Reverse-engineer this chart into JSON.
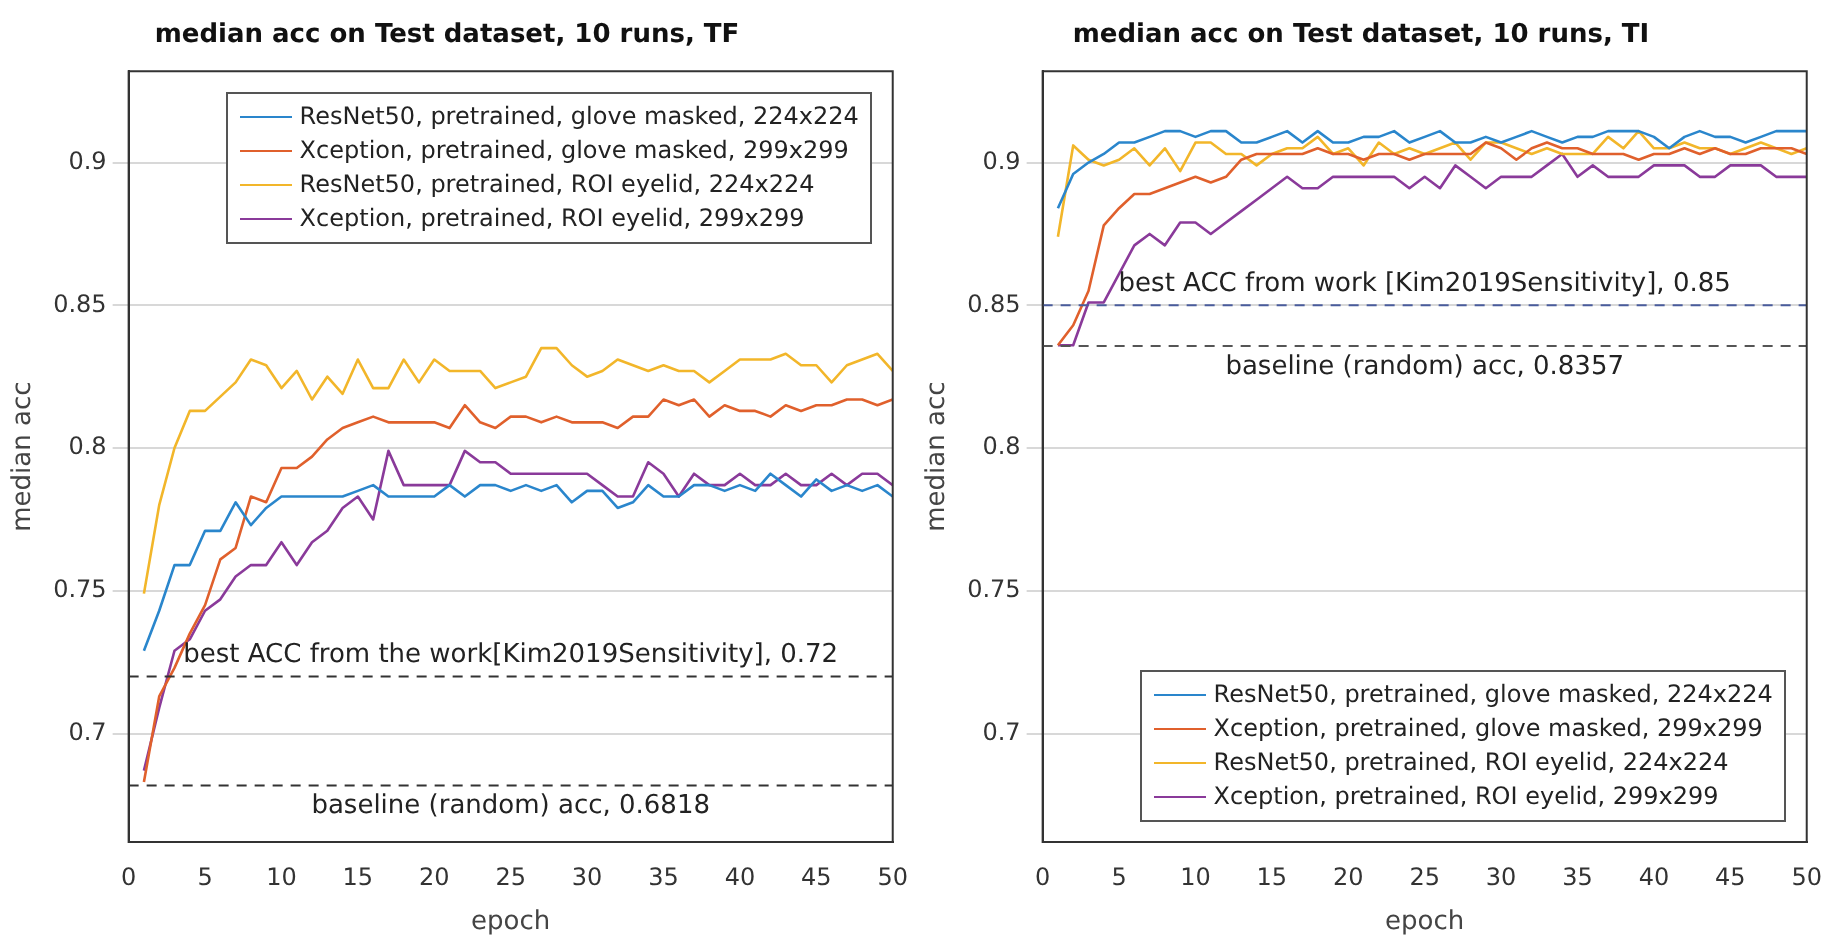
{
  "chart_data": [
    {
      "type": "line",
      "title": "median acc on Test dataset, 10 runs, TF",
      "xlabel": "epoch",
      "ylabel": "median acc",
      "x": [
        1,
        2,
        3,
        4,
        5,
        6,
        7,
        8,
        9,
        10,
        11,
        12,
        13,
        14,
        15,
        16,
        17,
        18,
        19,
        20,
        21,
        22,
        23,
        24,
        25,
        26,
        27,
        28,
        29,
        30,
        31,
        32,
        33,
        34,
        35,
        36,
        37,
        38,
        39,
        40,
        41,
        42,
        43,
        44,
        45,
        46,
        47,
        48,
        49,
        50
      ],
      "series": [
        {
          "name": "ResNet50, pretrained, glove masked, 224x224",
          "color": "#2a86cc",
          "values": [
            0.729,
            0.743,
            0.759,
            0.759,
            0.771,
            0.771,
            0.781,
            0.773,
            0.779,
            0.783,
            0.783,
            0.783,
            0.783,
            0.783,
            0.785,
            0.787,
            0.783,
            0.783,
            0.783,
            0.783,
            0.787,
            0.783,
            0.787,
            0.787,
            0.785,
            0.787,
            0.785,
            0.787,
            0.781,
            0.785,
            0.785,
            0.779,
            0.781,
            0.787,
            0.783,
            0.783,
            0.787,
            0.787,
            0.785,
            0.787,
            0.785,
            0.791,
            0.787,
            0.783,
            0.789,
            0.785,
            0.787,
            0.785,
            0.787,
            0.783
          ]
        },
        {
          "name": "Xception, pretrained, glove masked, 299x299",
          "color": "#e0602c",
          "values": [
            0.683,
            0.713,
            0.723,
            0.735,
            0.745,
            0.761,
            0.765,
            0.783,
            0.781,
            0.793,
            0.793,
            0.797,
            0.803,
            0.807,
            0.809,
            0.811,
            0.809,
            0.809,
            0.809,
            0.809,
            0.807,
            0.815,
            0.809,
            0.807,
            0.811,
            0.811,
            0.809,
            0.811,
            0.809,
            0.809,
            0.809,
            0.807,
            0.811,
            0.811,
            0.817,
            0.815,
            0.817,
            0.811,
            0.815,
            0.813,
            0.813,
            0.811,
            0.815,
            0.813,
            0.815,
            0.815,
            0.817,
            0.817,
            0.815,
            0.817
          ]
        },
        {
          "name": "ResNet50, pretrained, ROI eyelid, 224x224",
          "color": "#f2b62a",
          "values": [
            0.749,
            0.78,
            0.8,
            0.813,
            0.813,
            0.818,
            0.823,
            0.831,
            0.829,
            0.821,
            0.827,
            0.817,
            0.825,
            0.819,
            0.831,
            0.821,
            0.821,
            0.831,
            0.823,
            0.831,
            0.827,
            0.827,
            0.827,
            0.821,
            0.823,
            0.825,
            0.835,
            0.835,
            0.829,
            0.825,
            0.827,
            0.831,
            0.829,
            0.827,
            0.829,
            0.827,
            0.827,
            0.823,
            0.827,
            0.831,
            0.831,
            0.831,
            0.833,
            0.829,
            0.829,
            0.823,
            0.829,
            0.831,
            0.833,
            0.827
          ]
        },
        {
          "name": "Xception, pretrained, ROI eyelid, 299x299",
          "color": "#8a3a9a",
          "values": [
            0.687,
            0.709,
            0.729,
            0.733,
            0.743,
            0.747,
            0.755,
            0.759,
            0.759,
            0.767,
            0.759,
            0.767,
            0.771,
            0.779,
            0.783,
            0.775,
            0.799,
            0.787,
            0.787,
            0.787,
            0.787,
            0.799,
            0.795,
            0.795,
            0.791,
            0.791,
            0.791,
            0.791,
            0.791,
            0.791,
            0.787,
            0.783,
            0.783,
            0.795,
            0.791,
            0.783,
            0.791,
            0.787,
            0.787,
            0.791,
            0.787,
            0.787,
            0.791,
            0.787,
            0.787,
            0.791,
            0.787,
            0.791,
            0.791,
            0.787
          ]
        }
      ],
      "xlim": [
        0,
        50
      ],
      "xticks": [
        0,
        5,
        10,
        15,
        20,
        25,
        30,
        35,
        40,
        45,
        50
      ],
      "ylim": [
        0.662,
        0.932
      ],
      "yticks": [
        0.7,
        0.75,
        0.8,
        0.85,
        0.9
      ],
      "grid": "y",
      "legend": "top right",
      "ref_lines": [
        {
          "axis": "y",
          "value": 0.72,
          "label": "best ACC from the work[Kim2019Sensitivity], 0.72",
          "color": "#333333",
          "line_style": "dashed"
        },
        {
          "axis": "y",
          "value": 0.6818,
          "label": "baseline (random) acc, 0.6818",
          "color": "#333333",
          "line_style": "dashed"
        }
      ]
    },
    {
      "type": "line",
      "title": "median acc on Test dataset, 10 runs, TI",
      "xlabel": "epoch",
      "ylabel": "median acc",
      "x": [
        1,
        2,
        3,
        4,
        5,
        6,
        7,
        8,
        9,
        10,
        11,
        12,
        13,
        14,
        15,
        16,
        17,
        18,
        19,
        20,
        21,
        22,
        23,
        24,
        25,
        26,
        27,
        28,
        29,
        30,
        31,
        32,
        33,
        34,
        35,
        36,
        37,
        38,
        39,
        40,
        41,
        42,
        43,
        44,
        45,
        46,
        47,
        48,
        49,
        50
      ],
      "series": [
        {
          "name": "ResNet50, pretrained, glove masked, 224x224",
          "color": "#2a86cc",
          "values": [
            0.884,
            0.896,
            0.9,
            0.903,
            0.907,
            0.907,
            0.909,
            0.911,
            0.911,
            0.909,
            0.911,
            0.911,
            0.907,
            0.907,
            0.909,
            0.911,
            0.907,
            0.911,
            0.907,
            0.907,
            0.909,
            0.909,
            0.911,
            0.907,
            0.909,
            0.911,
            0.907,
            0.907,
            0.909,
            0.907,
            0.909,
            0.911,
            0.909,
            0.907,
            0.909,
            0.909,
            0.911,
            0.911,
            0.911,
            0.909,
            0.905,
            0.909,
            0.911,
            0.909,
            0.909,
            0.907,
            0.909,
            0.911,
            0.911,
            0.911
          ]
        },
        {
          "name": "Xception, pretrained, glove masked, 299x299",
          "color": "#e0602c",
          "values": [
            0.836,
            0.843,
            0.855,
            0.878,
            0.884,
            0.889,
            0.889,
            0.891,
            0.893,
            0.895,
            0.893,
            0.895,
            0.901,
            0.903,
            0.903,
            0.903,
            0.903,
            0.905,
            0.903,
            0.903,
            0.901,
            0.903,
            0.903,
            0.901,
            0.903,
            0.903,
            0.903,
            0.903,
            0.907,
            0.905,
            0.901,
            0.905,
            0.907,
            0.905,
            0.905,
            0.903,
            0.903,
            0.903,
            0.901,
            0.903,
            0.903,
            0.905,
            0.903,
            0.905,
            0.903,
            0.903,
            0.905,
            0.905,
            0.905,
            0.903
          ]
        },
        {
          "name": "ResNet50, pretrained, ROI eyelid, 224x224",
          "color": "#f2b62a",
          "values": [
            0.874,
            0.906,
            0.901,
            0.899,
            0.901,
            0.905,
            0.899,
            0.905,
            0.897,
            0.907,
            0.907,
            0.903,
            0.903,
            0.899,
            0.903,
            0.905,
            0.905,
            0.909,
            0.903,
            0.905,
            0.899,
            0.907,
            0.903,
            0.905,
            0.903,
            0.905,
            0.907,
            0.901,
            0.907,
            0.907,
            0.905,
            0.903,
            0.905,
            0.903,
            0.903,
            0.903,
            0.909,
            0.905,
            0.911,
            0.905,
            0.905,
            0.907,
            0.905,
            0.905,
            0.903,
            0.905,
            0.907,
            0.905,
            0.903,
            0.905
          ]
        },
        {
          "name": "Xception, pretrained, ROI eyelid, 299x299",
          "color": "#8a3a9a",
          "values": [
            0.836,
            0.836,
            0.851,
            0.851,
            0.861,
            0.871,
            0.875,
            0.871,
            0.879,
            0.879,
            0.875,
            0.879,
            0.883,
            0.887,
            0.891,
            0.895,
            0.891,
            0.891,
            0.895,
            0.895,
            0.895,
            0.895,
            0.895,
            0.891,
            0.895,
            0.891,
            0.899,
            0.895,
            0.891,
            0.895,
            0.895,
            0.895,
            0.899,
            0.903,
            0.895,
            0.899,
            0.895,
            0.895,
            0.895,
            0.899,
            0.899,
            0.899,
            0.895,
            0.895,
            0.899,
            0.899,
            0.899,
            0.895,
            0.895,
            0.895
          ]
        }
      ],
      "xlim": [
        0,
        50
      ],
      "xticks": [
        0,
        5,
        10,
        15,
        20,
        25,
        30,
        35,
        40,
        45,
        50
      ],
      "ylim": [
        0.662,
        0.932
      ],
      "yticks": [
        0.7,
        0.75,
        0.8,
        0.85,
        0.9
      ],
      "grid": "y",
      "legend": "bottom right",
      "ref_lines": [
        {
          "axis": "y",
          "value": 0.85,
          "label": "best ACC from work [Kim2019Sensitivity], 0.85",
          "color": "#4a5c9c",
          "line_style": "dashed"
        },
        {
          "axis": "y",
          "value": 0.8357,
          "label": "baseline (random) acc, 0.8357",
          "color": "#555555",
          "line_style": "dashed"
        }
      ]
    }
  ]
}
